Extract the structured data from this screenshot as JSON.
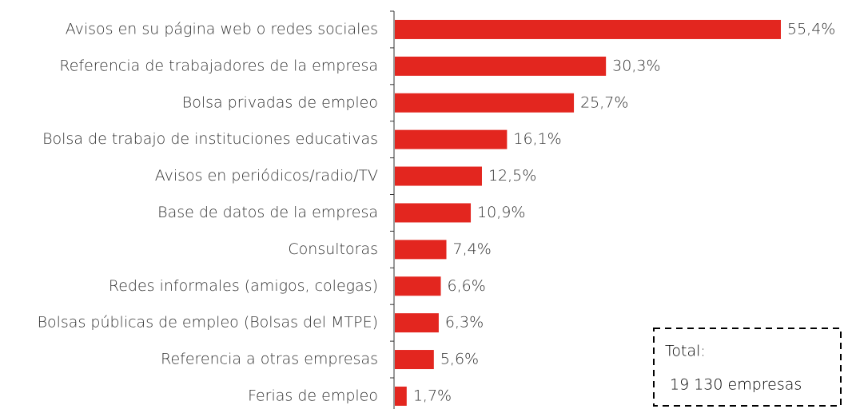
{
  "chart_data": {
    "type": "bar",
    "orientation": "horizontal",
    "color": "#e3261f",
    "categories": [
      "Avisos en su página web o redes sociales",
      "Referencia de trabajadores de la empresa",
      "Bolsa privadas de empleo",
      "Bolsa de trabajo de instituciones educativas",
      "Avisos en periódicos/radio/TV",
      "Base de datos de la empresa",
      "Consultoras",
      "Redes informales (amigos, colegas)",
      "Bolsas públicas de empleo (Bolsas del MTPE)",
      "Referencia a otras empresas",
      "Ferias de empleo"
    ],
    "values": [
      55.4,
      30.3,
      25.7,
      16.1,
      12.5,
      10.9,
      7.4,
      6.6,
      6.3,
      5.6,
      1.7
    ],
    "value_labels": [
      "55,4%",
      "30,3%",
      "25,7%",
      "16,1%",
      "12,5%",
      "10,9%",
      "7,4%",
      "6,6%",
      "6,3%",
      "5,6%",
      "1,7%"
    ],
    "annotation": {
      "line1": "Total:",
      "line2": "19 130  empresas"
    }
  }
}
